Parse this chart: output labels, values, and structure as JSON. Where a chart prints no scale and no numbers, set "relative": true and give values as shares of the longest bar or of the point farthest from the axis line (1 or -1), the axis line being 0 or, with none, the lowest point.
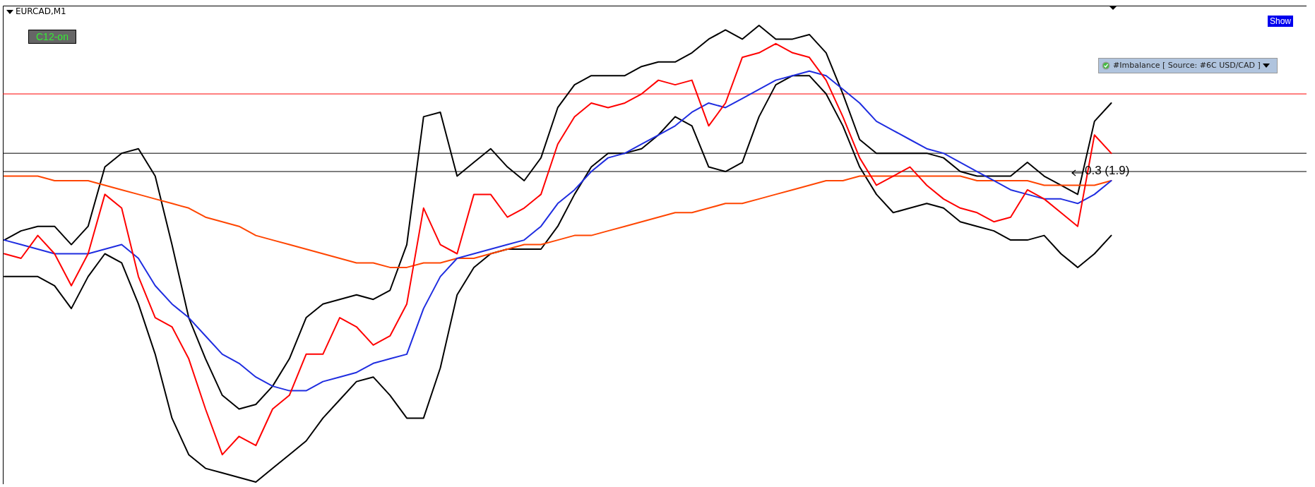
{
  "chart_data": {
    "type": "line",
    "title": "EURCAD,M1",
    "relative": true,
    "legend": false,
    "grid": false,
    "categories": [
      null,
      null,
      null,
      null,
      null,
      null,
      null,
      null,
      null,
      null,
      null,
      null,
      null,
      null,
      null,
      null,
      null,
      null,
      null,
      null,
      null,
      null,
      null,
      null,
      null,
      null,
      null,
      null,
      null,
      null,
      null,
      null,
      null,
      null,
      null,
      null,
      null,
      null,
      null,
      null,
      null,
      null,
      null,
      null,
      null,
      null,
      null,
      null,
      null,
      null,
      null,
      null,
      null,
      null,
      null,
      null,
      null,
      null,
      null,
      null,
      null,
      null,
      null,
      null,
      null,
      null,
      null
    ],
    "series": [
      {
        "color": "#000000",
        "values": [
          0.53,
          0.55,
          0.56,
          0.56,
          0.52,
          0.56,
          0.69,
          0.72,
          0.73,
          0.67,
          0.52,
          0.36,
          0.27,
          0.19,
          0.16,
          0.17,
          0.21,
          0.27,
          0.36,
          0.39,
          0.4,
          0.41,
          0.4,
          0.42,
          0.52,
          0.8,
          0.81,
          0.67,
          0.7,
          0.73,
          0.69,
          0.66,
          0.71,
          0.82,
          0.87,
          0.89,
          0.89,
          0.89,
          0.91,
          0.92,
          0.92,
          0.94,
          0.97,
          0.99,
          0.97,
          1,
          0.97,
          0.97,
          0.98,
          0.94,
          0.85,
          0.75,
          0.72,
          0.72,
          0.72,
          0.72,
          0.71,
          0.68,
          0.67,
          0.67,
          0.67,
          0.7,
          0.67,
          0.65,
          0.63,
          0.79,
          0.83
        ]
      },
      {
        "color": "#000000",
        "values": [
          0.45,
          0.45,
          0.45,
          0.43,
          0.38,
          0.45,
          0.5,
          0.48,
          0.39,
          0.28,
          0.14,
          0.06,
          0.03,
          0.02,
          0.01,
          0,
          0.03,
          0.06,
          0.09,
          0.14,
          0.18,
          0.22,
          0.23,
          0.19,
          0.14,
          0.14,
          0.25,
          0.41,
          0.47,
          0.5,
          0.51,
          0.51,
          0.51,
          0.56,
          0.63,
          0.69,
          0.72,
          0.72,
          0.73,
          0.76,
          0.8,
          0.78,
          0.69,
          0.68,
          0.7,
          0.8,
          0.87,
          0.89,
          0.89,
          0.85,
          0.78,
          0.69,
          0.63,
          0.59,
          0.6,
          0.61,
          0.6,
          0.57,
          0.56,
          0.55,
          0.53,
          0.53,
          0.54,
          0.5,
          0.47,
          0.5,
          0.54
        ]
      },
      {
        "color": "#ff4500",
        "values": [
          0.67,
          0.67,
          0.67,
          0.66,
          0.66,
          0.66,
          0.65,
          0.64,
          0.63,
          0.62,
          0.61,
          0.6,
          0.58,
          0.57,
          0.56,
          0.54,
          0.53,
          0.52,
          0.51,
          0.5,
          0.49,
          0.48,
          0.48,
          0.47,
          0.47,
          0.48,
          0.48,
          0.49,
          0.49,
          0.5,
          0.51,
          0.52,
          0.52,
          0.53,
          0.54,
          0.54,
          0.55,
          0.56,
          0.57,
          0.58,
          0.59,
          0.59,
          0.6,
          0.61,
          0.61,
          0.62,
          0.63,
          0.64,
          0.65,
          0.66,
          0.66,
          0.67,
          0.67,
          0.67,
          0.67,
          0.67,
          0.67,
          0.67,
          0.66,
          0.66,
          0.66,
          0.66,
          0.65,
          0.65,
          0.65,
          0.65,
          0.66
        ]
      },
      {
        "color": "#1f2de0",
        "values": [
          0.53,
          0.52,
          0.51,
          0.5,
          0.5,
          0.5,
          0.51,
          0.52,
          0.49,
          0.43,
          0.39,
          0.36,
          0.32,
          0.28,
          0.26,
          0.23,
          0.21,
          0.2,
          0.2,
          0.22,
          0.23,
          0.24,
          0.26,
          0.27,
          0.28,
          0.38,
          0.45,
          0.49,
          0.5,
          0.51,
          0.52,
          0.53,
          0.56,
          0.61,
          0.64,
          0.68,
          0.71,
          0.72,
          0.74,
          0.76,
          0.78,
          0.81,
          0.83,
          0.82,
          0.84,
          0.86,
          0.88,
          0.89,
          0.9,
          0.89,
          0.86,
          0.83,
          0.79,
          0.77,
          0.75,
          0.73,
          0.72,
          0.7,
          0.68,
          0.66,
          0.64,
          0.63,
          0.62,
          0.62,
          0.61,
          0.63,
          0.66
        ]
      },
      {
        "color": "#ff0000",
        "values": [
          0.5,
          0.49,
          0.54,
          0.5,
          0.43,
          0.5,
          0.63,
          0.6,
          0.45,
          0.36,
          0.34,
          0.27,
          0.16,
          0.06,
          0.1,
          0.08,
          0.16,
          0.19,
          0.28,
          0.28,
          0.36,
          0.34,
          0.3,
          0.32,
          0.39,
          0.6,
          0.52,
          0.5,
          0.63,
          0.63,
          0.58,
          0.6,
          0.63,
          0.74,
          0.8,
          0.83,
          0.82,
          0.83,
          0.85,
          0.88,
          0.87,
          0.88,
          0.78,
          0.83,
          0.93,
          0.94,
          0.96,
          0.94,
          0.93,
          0.88,
          0.8,
          0.71,
          0.65,
          0.67,
          0.69,
          0.65,
          0.62,
          0.6,
          0.59,
          0.57,
          0.58,
          0.64,
          0.62,
          0.59,
          0.56,
          0.76,
          0.72
        ]
      }
    ],
    "ref_lines": [
      {
        "axis": "y",
        "value": 0.85,
        "color": "#ff0000"
      },
      {
        "axis": "y",
        "value": 0.72,
        "color": "#000000"
      },
      {
        "axis": "y",
        "value": 0.68,
        "color": "#000000"
      }
    ],
    "annotations": [
      "C12-on",
      "Show",
      "#Imbalance [ Source: #6C USD/CAD ]",
      "0.3 (1.9)"
    ]
  }
}
